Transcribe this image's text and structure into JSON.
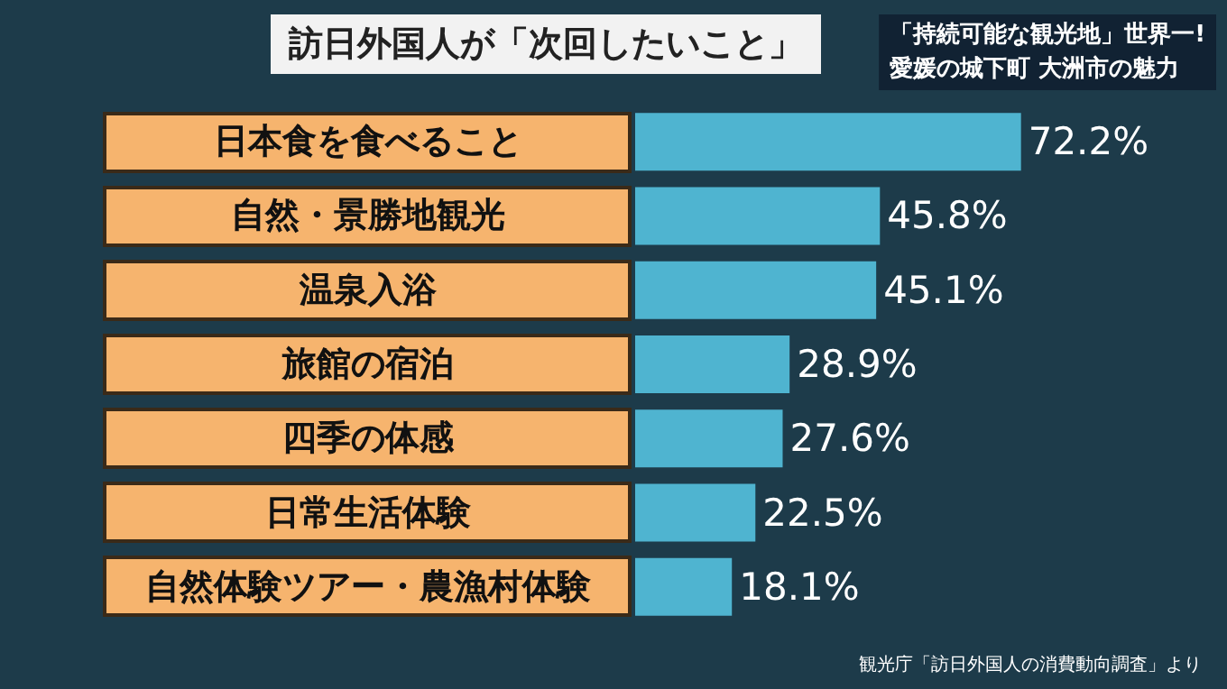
{
  "chart_data": {
    "type": "bar",
    "orientation": "horizontal",
    "title": "訪日外国人が「次回したいこと」",
    "subtitle": "「持続可能な観光地」世界一!\n愛媛の城下町 大洲市の魅力",
    "categories": [
      "日本食を食べること",
      "自然・景勝地観光",
      "温泉入浴",
      "旅館の宿泊",
      "四季の体感",
      "日常生活体験",
      "自然体験ツアー・農漁村体験"
    ],
    "values": [
      72.2,
      45.8,
      45.1,
      28.9,
      27.6,
      22.5,
      18.1
    ],
    "value_labels": [
      "72.2%",
      "45.8%",
      "45.1%",
      "28.9%",
      "27.6%",
      "22.5%",
      "18.1%"
    ],
    "color": "#4fb4d0",
    "grid": false,
    "annotations": [
      "観光庁「訪日外国人の消費動向調査」より"
    ]
  }
}
